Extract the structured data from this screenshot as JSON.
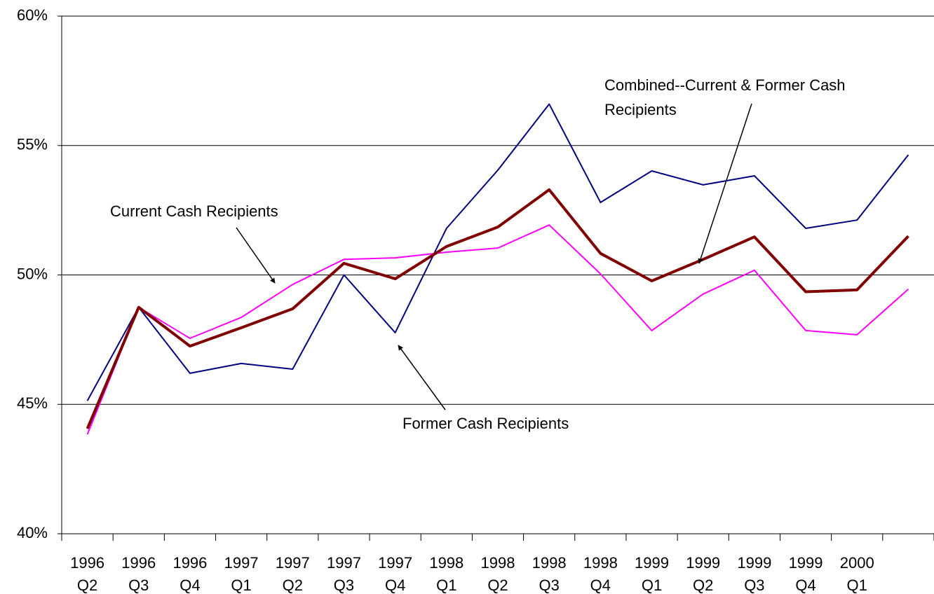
{
  "chart_data": {
    "type": "line",
    "categories": [
      "1996 Q2",
      "1996 Q3",
      "1996 Q4",
      "1997 Q1",
      "1997 Q2",
      "1997 Q3",
      "1997 Q4",
      "1998 Q1",
      "1998 Q2",
      "1998 Q3",
      "1998 Q4",
      "1999 Q1",
      "1999 Q2",
      "1999 Q3",
      "1999 Q4",
      "2000 Q1",
      null
    ],
    "series": [
      {
        "name": "Former Cash Recipients",
        "color": "#000080",
        "width": 2,
        "values": [
          45.14,
          48.75,
          46.2,
          46.58,
          46.36,
          50.0,
          47.77,
          51.8,
          54.05,
          56.6,
          52.8,
          54.02,
          53.48,
          53.83,
          51.8,
          52.12,
          54.64
        ]
      },
      {
        "name": "Current Cash Recipients",
        "color": "#ff00ff",
        "width": 2,
        "values": [
          43.84,
          48.75,
          47.55,
          48.36,
          49.63,
          50.6,
          50.66,
          50.88,
          51.04,
          51.93,
          50.04,
          47.85,
          49.26,
          50.18,
          47.85,
          47.69,
          49.45
        ]
      },
      {
        "name": "Combined--Current & Former Cash Recipients",
        "color": "#800000",
        "width": 4,
        "values": [
          44.06,
          48.75,
          47.25,
          47.96,
          48.69,
          50.45,
          49.85,
          51.1,
          51.85,
          53.29,
          50.83,
          49.77,
          50.6,
          51.47,
          49.35,
          49.42,
          51.5
        ]
      }
    ],
    "ylim": [
      40,
      60
    ],
    "yticks": [
      {
        "value": 40,
        "label": "40%"
      },
      {
        "value": 45,
        "label": "45%"
      },
      {
        "value": 50,
        "label": "50%"
      },
      {
        "value": 55,
        "label": "55%"
      },
      {
        "value": 60,
        "label": "60%"
      }
    ],
    "grid": true
  }
}
